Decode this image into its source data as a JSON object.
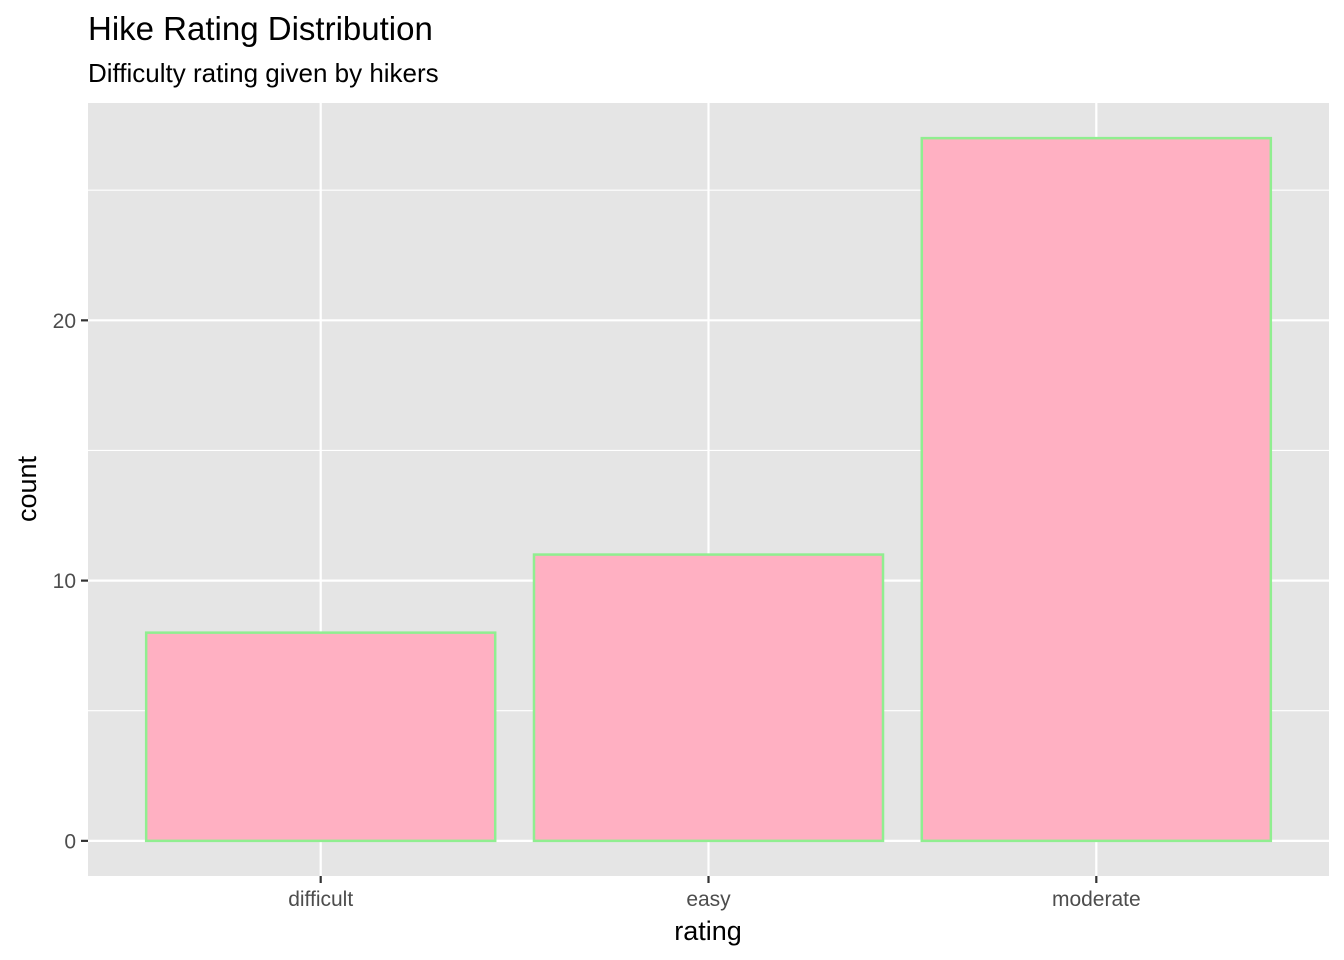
{
  "chart_data": {
    "type": "bar",
    "title": "Hike Rating Distribution",
    "subtitle": "Difficulty rating given by hikers",
    "xlabel": "rating",
    "ylabel": "count",
    "categories": [
      "difficult",
      "easy",
      "moderate"
    ],
    "values": [
      8,
      11,
      27
    ],
    "ylim": [
      -1.35,
      28.35
    ],
    "yticks": [
      0,
      10,
      20
    ],
    "yticks_minor": [
      5,
      15,
      25
    ],
    "grid": true,
    "legend": "none",
    "colors": {
      "bar_fill": "#FFB0C2",
      "bar_outline": "#90EE90",
      "panel_background": "#E5E5E5",
      "grid": "#FFFFFF",
      "tick_text": "#4D4D4D",
      "tick_mark": "#333333"
    }
  }
}
